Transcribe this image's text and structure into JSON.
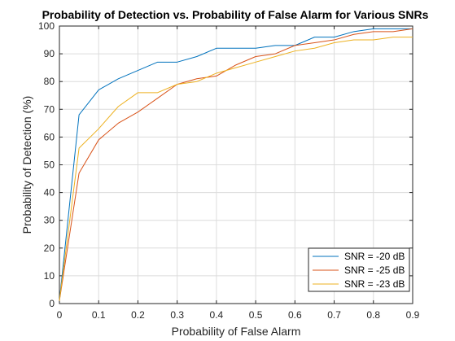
{
  "chart_data": {
    "type": "line",
    "title": "Probability of Detection vs. Probability of False Alarm for Various SNRs",
    "xlabel": "Probability of False Alarm",
    "ylabel": "Probability of Detection (%)",
    "xlim": [
      0,
      0.9
    ],
    "ylim": [
      0,
      100
    ],
    "xticks": [
      "0",
      "0.1",
      "0.2",
      "0.3",
      "0.4",
      "0.5",
      "0.6",
      "0.7",
      "0.8",
      "0.9"
    ],
    "yticks": [
      "0",
      "10",
      "20",
      "30",
      "40",
      "50",
      "60",
      "70",
      "80",
      "90",
      "100"
    ],
    "grid": true,
    "legend_position": "bottom-right",
    "x": [
      0,
      0.05,
      0.1,
      0.15,
      0.2,
      0.25,
      0.3,
      0.35,
      0.4,
      0.45,
      0.5,
      0.55,
      0.6,
      0.65,
      0.7,
      0.75,
      0.8,
      0.85,
      0.9
    ],
    "series": [
      {
        "name": "SNR = -20 dB",
        "color": "#0072BD",
        "values": [
          1,
          68,
          77,
          81,
          84,
          87,
          87,
          89,
          92,
          92,
          92,
          93,
          93,
          96,
          96,
          98,
          99,
          99,
          99
        ]
      },
      {
        "name": "SNR = -25 dB",
        "color": "#D95319",
        "values": [
          1,
          47,
          59,
          65,
          69,
          74,
          79,
          81,
          82,
          86,
          89,
          90,
          93,
          94,
          95,
          97,
          98,
          98,
          99
        ]
      },
      {
        "name": "SNR = -23 dB",
        "color": "#EDB120",
        "values": [
          1,
          56,
          63,
          71,
          76,
          76,
          79,
          80,
          83,
          85,
          87,
          89,
          91,
          92,
          94,
          95,
          95,
          96,
          96
        ]
      }
    ]
  }
}
